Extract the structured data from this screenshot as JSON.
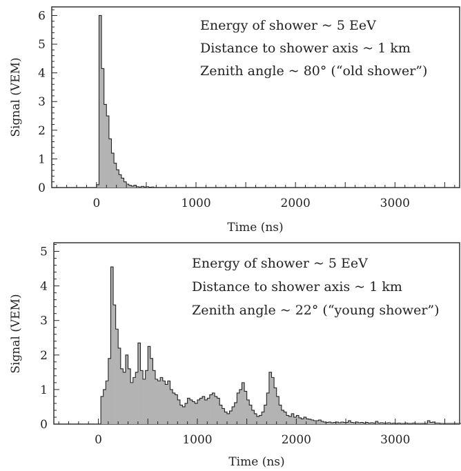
{
  "chart_data": [
    {
      "type": "area",
      "xlabel": "Time (ns)",
      "ylabel": "Signal (VEM)",
      "xlim": [
        -450,
        3650
      ],
      "ylim": [
        0,
        6.3
      ],
      "x_ticks": [
        0,
        1000,
        2000,
        3000
      ],
      "y_ticks": [
        0,
        1,
        2,
        3,
        4,
        5,
        6
      ],
      "annotations": [
        "Energy of shower ~ 5 EeV",
        "Distance to shower axis ~ 1 km",
        "Zenith angle ~ 80° (“old shower”)"
      ],
      "bin_width": 25,
      "x_start": 0,
      "values": [
        0.1,
        6.0,
        4.15,
        2.9,
        2.5,
        1.7,
        1.2,
        0.85,
        0.62,
        0.45,
        0.33,
        0.2,
        0.12,
        0.08,
        0.05,
        0.08,
        0.03,
        0.02,
        0.04,
        0.02,
        0.03,
        0.01,
        0.02
      ],
      "grid": false
    },
    {
      "type": "area",
      "xlabel": "Time (ns)",
      "ylabel": "Signal (VEM)",
      "xlim": [
        -450,
        3650
      ],
      "ylim": [
        0,
        5.25
      ],
      "x_ticks": [
        0,
        1000,
        2000,
        3000
      ],
      "y_ticks": [
        0,
        1,
        2,
        3,
        4,
        5
      ],
      "annotations": [
        "Energy of shower ~ 5 EeV",
        "Distance to shower axis ~ 1 km",
        "Zenith angle ~ 22° (“young shower”)"
      ],
      "bin_width": 25,
      "x_start": 25,
      "values": [
        0.8,
        1.0,
        1.25,
        1.9,
        4.55,
        3.45,
        2.75,
        2.2,
        1.6,
        1.5,
        2.0,
        1.6,
        1.2,
        1.35,
        1.5,
        2.35,
        1.55,
        1.3,
        1.55,
        2.25,
        1.9,
        1.55,
        1.3,
        1.25,
        1.35,
        1.25,
        1.15,
        1.25,
        1.0,
        0.9,
        0.85,
        0.7,
        0.55,
        0.5,
        0.6,
        0.75,
        0.7,
        0.65,
        0.6,
        0.7,
        0.75,
        0.8,
        0.7,
        0.75,
        0.85,
        0.9,
        0.8,
        0.75,
        0.55,
        0.45,
        0.35,
        0.3,
        0.38,
        0.5,
        0.62,
        0.9,
        1.0,
        1.2,
        0.95,
        0.7,
        0.55,
        0.4,
        0.3,
        0.22,
        0.25,
        0.35,
        0.55,
        0.9,
        1.5,
        1.35,
        1.05,
        0.8,
        0.55,
        0.4,
        0.35,
        0.25,
        0.22,
        0.3,
        0.2,
        0.25,
        0.18,
        0.15,
        0.2,
        0.15,
        0.14,
        0.12,
        0.1,
        0.1,
        0.12,
        0.08,
        0.06,
        0.05,
        0.06,
        0.04,
        0.05,
        0.06,
        0.04,
        0.06,
        0.05,
        0.05,
        0.1,
        0.05,
        0.04,
        0.06,
        0.04,
        0.05,
        0.03,
        0.05,
        0.03,
        0.04,
        0.03,
        0.08,
        0.03,
        0.04,
        0.03,
        0.03,
        0.04,
        0.02,
        0.03,
        0.02,
        0.03,
        0.02,
        0.02,
        0.03,
        0.02,
        0.02,
        0.03,
        0.02,
        0.02,
        0.02,
        0.02,
        0.02,
        0.1,
        0.05,
        0.06,
        0.03,
        0.03,
        0.02,
        0.02,
        0.02,
        0.02,
        0.02,
        0.02,
        0.02,
        0.02,
        0.02,
        0.02,
        0.02,
        0.02,
        0.02,
        0.02,
        0.02,
        0.02,
        0.02,
        0.02,
        0.02,
        0.02,
        0.02,
        0.02,
        0.02,
        0.02,
        0.02,
        0.02,
        0.02,
        0.02,
        0.02,
        0.02,
        0.02,
        0.02,
        0.02,
        0.02,
        0.02,
        0.02,
        0.02,
        0.02,
        0.02,
        0.02,
        0.02,
        0.02,
        0.05,
        0.02,
        0.02,
        0.4,
        0.15,
        0.02,
        0.02,
        0.02,
        0.02,
        0.02,
        0.02,
        0.02,
        0.02,
        0.02,
        0.02,
        0.02,
        0.02,
        0.02,
        0.02,
        0.02
      ],
      "grid": false
    }
  ],
  "colors": {
    "fill": "#b3b3b3",
    "stroke": "#222222",
    "axis": "#222222"
  }
}
